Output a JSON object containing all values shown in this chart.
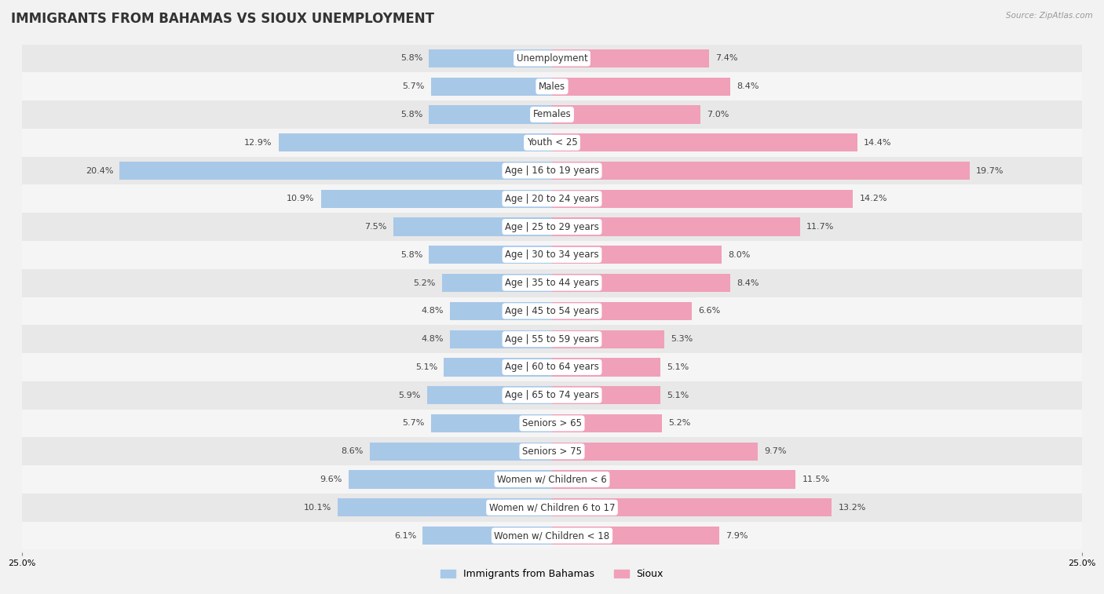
{
  "title": "IMMIGRANTS FROM BAHAMAS VS SIOUX UNEMPLOYMENT",
  "source": "Source: ZipAtlas.com",
  "categories": [
    "Unemployment",
    "Males",
    "Females",
    "Youth < 25",
    "Age | 16 to 19 years",
    "Age | 20 to 24 years",
    "Age | 25 to 29 years",
    "Age | 30 to 34 years",
    "Age | 35 to 44 years",
    "Age | 45 to 54 years",
    "Age | 55 to 59 years",
    "Age | 60 to 64 years",
    "Age | 65 to 74 years",
    "Seniors > 65",
    "Seniors > 75",
    "Women w/ Children < 6",
    "Women w/ Children 6 to 17",
    "Women w/ Children < 18"
  ],
  "bahamas_values": [
    5.8,
    5.7,
    5.8,
    12.9,
    20.4,
    10.9,
    7.5,
    5.8,
    5.2,
    4.8,
    4.8,
    5.1,
    5.9,
    5.7,
    8.6,
    9.6,
    10.1,
    6.1
  ],
  "sioux_values": [
    7.4,
    8.4,
    7.0,
    14.4,
    19.7,
    14.2,
    11.7,
    8.0,
    8.4,
    6.6,
    5.3,
    5.1,
    5.1,
    5.2,
    9.7,
    11.5,
    13.2,
    7.9
  ],
  "bahamas_color": "#a8c8e8",
  "sioux_color": "#f0a0b8",
  "bahamas_label": "Immigrants from Bahamas",
  "sioux_label": "Sioux",
  "axis_limit": 25.0,
  "row_colors": [
    "#e8e8e8",
    "#f5f5f5"
  ],
  "title_fontsize": 12,
  "label_fontsize": 8.5,
  "value_fontsize": 8.0,
  "bar_height": 0.65
}
